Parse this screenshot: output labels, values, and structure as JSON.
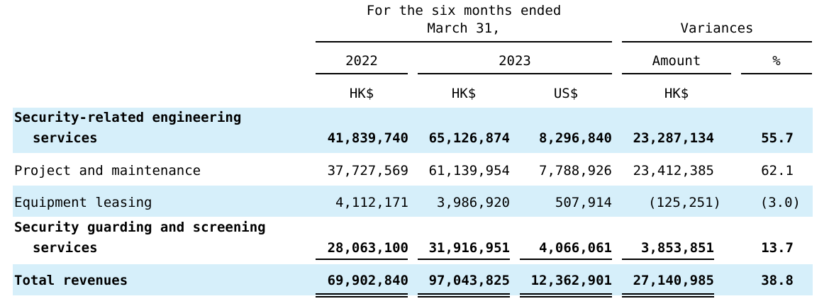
{
  "colors": {
    "band": "#d6effa",
    "text": "#000000"
  },
  "header": {
    "period_line1": "For the  six  months ended",
    "period_line2": "March  31,",
    "variances": "Variances",
    "col_2022": "2022",
    "col_2023": "2023",
    "col_amount": "Amount",
    "col_pct": "%",
    "cur_2022": "HK$",
    "cur_2023_hk": "HK$",
    "cur_2023_us": "US$",
    "cur_amount": "HK$"
  },
  "rows": [
    {
      "label_line1": "Security-related engineering",
      "label_line2": "services",
      "v2022": "41,839,740",
      "v2023hk": "65,126,874",
      "v2023us": "8,296,840",
      "amount": "23,287,134",
      "pct": "55.7"
    },
    {
      "label": "Project and maintenance",
      "v2022": "37,727,569",
      "v2023hk": "61,139,954",
      "v2023us": "7,788,926",
      "amount": "23,412,385",
      "pct": "62.1"
    },
    {
      "label": "Equipment leasing",
      "v2022": "4,112,171",
      "v2023hk": "3,986,920",
      "v2023us": "507,914",
      "amount": "(125,251)",
      "pct": "(3.0)"
    },
    {
      "label_line1": "Security guarding and screening",
      "label_line2": "services",
      "v2022": "28,063,100",
      "v2023hk": "31,916,951",
      "v2023us": "4,066,061",
      "amount": "3,853,851",
      "pct": "13.7"
    },
    {
      "label": "Total revenues",
      "v2022": "69,902,840",
      "v2023hk": "97,043,825",
      "v2023us": "12,362,901",
      "amount": "27,140,985",
      "pct": "38.8"
    }
  ]
}
